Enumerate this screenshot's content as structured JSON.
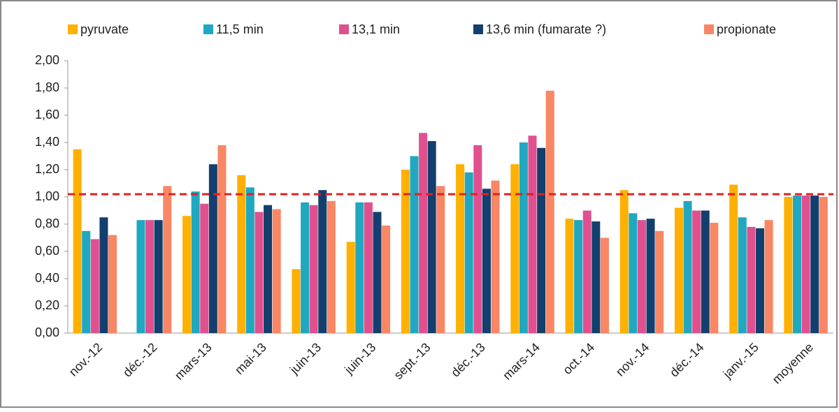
{
  "chart_data": {
    "type": "bar",
    "categories": [
      "nov.-12",
      "déc.-12",
      "mars-13",
      "mai-13",
      "juin-13",
      "juin-13",
      "sept.-13",
      "déc.-13",
      "mars-14",
      "oct.-14",
      "nov.-14",
      "déc.-14",
      "janv.-15",
      "moyenne"
    ],
    "series": [
      {
        "name": "pyruvate",
        "color": "#ffb000",
        "values": [
          1.35,
          null,
          0.86,
          1.16,
          0.47,
          0.67,
          1.2,
          1.24,
          1.24,
          0.84,
          1.05,
          0.92,
          1.09,
          1.0
        ]
      },
      {
        "name": "11,5 min",
        "color": "#1fa8c0",
        "values": [
          0.75,
          0.83,
          1.04,
          1.07,
          0.96,
          0.96,
          1.3,
          1.18,
          1.4,
          0.83,
          0.88,
          0.97,
          0.85,
          1.01
        ]
      },
      {
        "name": "13,1 min",
        "color": "#e0508f",
        "values": [
          0.69,
          0.83,
          0.95,
          0.89,
          0.94,
          0.96,
          1.47,
          1.38,
          1.45,
          0.9,
          0.83,
          0.9,
          0.78,
          1.01
        ]
      },
      {
        "name": "13,6 min (fumarate  ?)",
        "color": "#123f6e",
        "values": [
          0.85,
          0.83,
          1.24,
          0.94,
          1.05,
          0.89,
          1.41,
          1.06,
          1.36,
          0.82,
          0.84,
          0.9,
          0.77,
          1.01
        ]
      },
      {
        "name": "propionate",
        "color": "#f98664",
        "values": [
          0.72,
          1.08,
          1.38,
          0.91,
          0.97,
          0.79,
          1.08,
          1.12,
          1.78,
          0.7,
          0.75,
          0.81,
          0.83,
          1.0
        ]
      }
    ],
    "ylim": [
      0,
      2
    ],
    "yticks": [
      {
        "value": 0,
        "label": "0,00"
      },
      {
        "value": 0.2,
        "label": "0,20"
      },
      {
        "value": 0.4,
        "label": "0,40"
      },
      {
        "value": 0.6,
        "label": "0,60"
      },
      {
        "value": 0.8,
        "label": "0,80"
      },
      {
        "value": 1,
        "label": "1,00"
      },
      {
        "value": 1.2,
        "label": "1,20"
      },
      {
        "value": 1.4,
        "label": "1,40"
      },
      {
        "value": 1.6,
        "label": "1,60"
      },
      {
        "value": 1.8,
        "label": "1,80"
      },
      {
        "value": 2,
        "label": "2,00"
      }
    ],
    "reference_line": {
      "value": 1.02,
      "color": "#e02020"
    },
    "grid": false,
    "legend": "top"
  }
}
